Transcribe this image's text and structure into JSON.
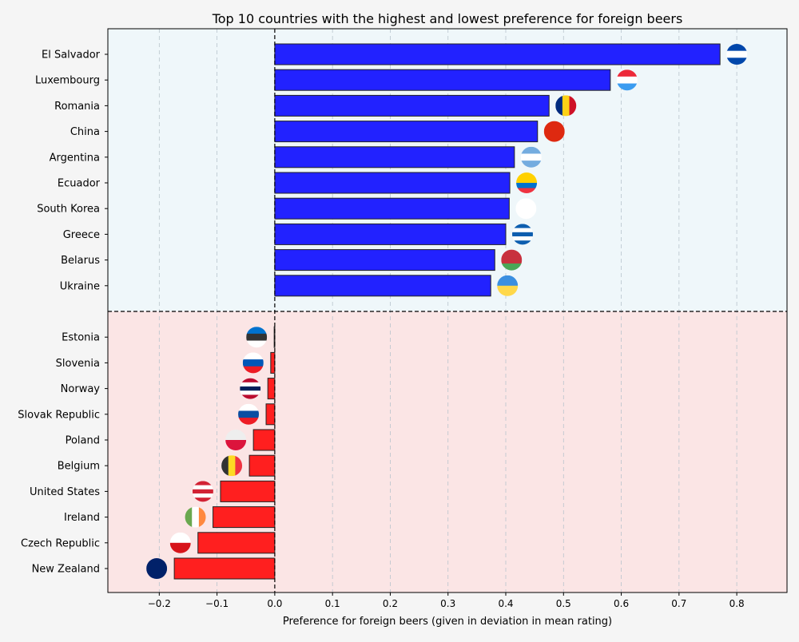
{
  "chart_data": {
    "type": "bar",
    "orientation": "horizontal",
    "title": "Top 10 countries with the highest and lowest preference for foreign beers",
    "xlabel": "Preference for foreign beers (given in deviation in mean rating)",
    "ylabel": "",
    "xlim": [
      -0.289,
      0.887
    ],
    "xticks": [
      -0.2,
      -0.1,
      0.0,
      0.1,
      0.2,
      0.3,
      0.4,
      0.5,
      0.6,
      0.7,
      0.8
    ],
    "xtick_labels": [
      "−0.2",
      "−0.1",
      "0.0",
      "0.1",
      "0.2",
      "0.3",
      "0.4",
      "0.5",
      "0.6",
      "0.7",
      "0.8"
    ],
    "grid": "vertical dashed",
    "colors": {
      "top": "#2222ff",
      "bottom": "#ff1f1f",
      "top_bg": "#eff7fa",
      "bottom_bg": "#fbe5e5"
    },
    "top": {
      "categories": [
        "El Salvador",
        "Luxembourg",
        "Romania",
        "China",
        "Argentina",
        "Ecuador",
        "South Korea",
        "Greece",
        "Belarus",
        "Ukraine"
      ],
      "values": [
        0.771,
        0.581,
        0.475,
        0.455,
        0.415,
        0.407,
        0.406,
        0.4,
        0.381,
        0.374
      ],
      "flag_colors": [
        [
          "h",
          "#0047ab",
          "#ffffff",
          "#0047ab"
        ],
        [
          "h",
          "#ed2939",
          "#ffffff",
          "#3b9cf0"
        ],
        [
          "v",
          "#002b7f",
          "#fcd116",
          "#ce1126"
        ],
        [
          "h",
          "#de2910"
        ],
        [
          "h",
          "#74acdf",
          "#ffffff",
          "#74acdf"
        ],
        [
          "h",
          "#ffd100",
          "#ffd100",
          "#0072ce",
          "#ef3340"
        ],
        [
          "h",
          "#ffffff"
        ],
        [
          "h",
          "#0d5eaf",
          "#ffffff",
          "#0d5eaf",
          "#ffffff",
          "#0d5eaf"
        ],
        [
          "h",
          "#c8313e",
          "#c8313e",
          "#4aa657"
        ],
        [
          "h",
          "#3b8fe0",
          "#ffd84a"
        ]
      ]
    },
    "bottom": {
      "categories": [
        "Estonia",
        "Slovenia",
        "Norway",
        "Slovak Republic",
        "Poland",
        "Belgium",
        "United States",
        "Ireland",
        "Czech Republic",
        "New Zealand"
      ],
      "values": [
        -0.001,
        -0.007,
        -0.012,
        -0.015,
        -0.037,
        -0.044,
        -0.094,
        -0.107,
        -0.133,
        -0.174
      ],
      "flag_colors": [
        [
          "h",
          "#0072ce",
          "#333333",
          "#ffffff"
        ],
        [
          "h",
          "#ffffff",
          "#0057b8",
          "#ed1c24"
        ],
        [
          "h",
          "#ba0c2f",
          "#ffffff",
          "#00205b",
          "#ffffff",
          "#ba0c2f"
        ],
        [
          "h",
          "#ffffff",
          "#0b4ea2",
          "#ee1c25"
        ],
        [
          "h",
          "#eeeeee",
          "#dc143c"
        ],
        [
          "v",
          "#333333",
          "#fdda24",
          "#ef3340"
        ],
        [
          "h",
          "#d22234",
          "#ffffff",
          "#d22234",
          "#ffffff",
          "#d22234"
        ],
        [
          "v",
          "#6aa84f",
          "#ffffff",
          "#ff883e"
        ],
        [
          "h",
          "#ffffff",
          "#d7141a"
        ],
        [
          "h",
          "#012169"
        ]
      ]
    }
  }
}
